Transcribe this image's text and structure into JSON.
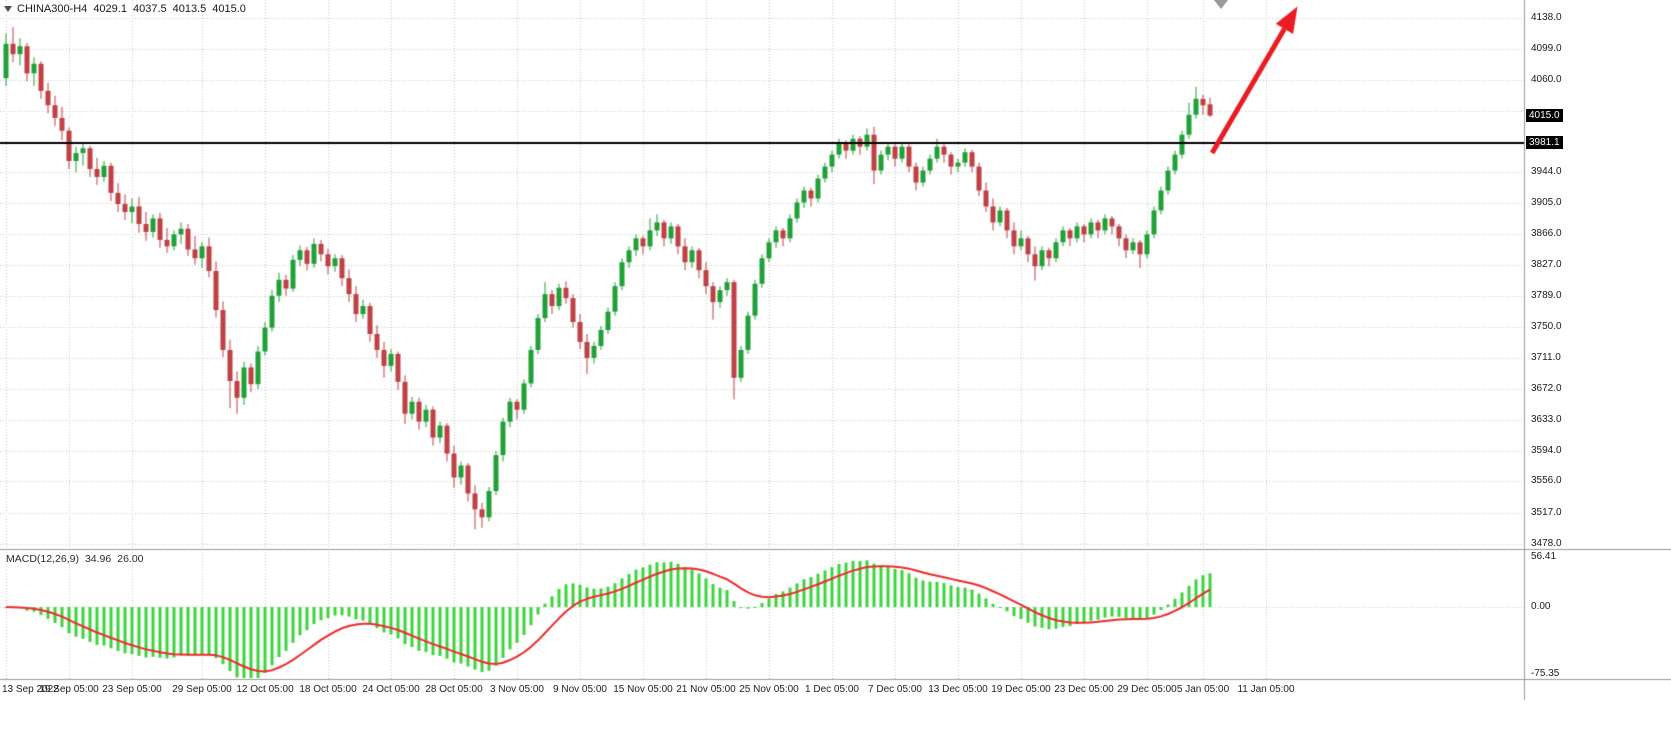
{
  "header": {
    "symbol_period": "CHINA300-H4",
    "open": "4029.1",
    "high": "4037.5",
    "low": "4013.5",
    "close": "4015.0"
  },
  "indicator_panel": {
    "name": "MACD(12,26,9)",
    "value_main": "34.96",
    "value_signal": "26.00",
    "scale_max": "56.41",
    "scale_zero": "0.00",
    "scale_min": "-75.35"
  },
  "price_axis": {
    "current_price_label": "4015.0",
    "hline_label": "3981.1"
  },
  "chart_data": {
    "type": "candlestick",
    "title": "CHINA300-H4",
    "symbol": "CHINA300",
    "timeframe": "H4",
    "grid": true,
    "y_axis": {
      "min": 3478.0,
      "max": 4138.0,
      "grid_step": 39,
      "grid_prices": [
        4138,
        4099,
        4060,
        4021,
        3982,
        3944,
        3905,
        3866,
        3827,
        3789,
        3750,
        3711,
        3672,
        3633,
        3594,
        3556,
        3517,
        3478
      ],
      "labels": [
        {
          "price": 4138,
          "text": "4138.0"
        },
        {
          "price": 4099,
          "text": "4099.0"
        },
        {
          "price": 4060,
          "text": "4060.0"
        },
        {
          "price": 3944,
          "text": "3944.0"
        },
        {
          "price": 3905,
          "text": "3905.0"
        },
        {
          "price": 3866,
          "text": "3866.0"
        },
        {
          "price": 3827,
          "text": "3827.0"
        },
        {
          "price": 3789,
          "text": "3789.0"
        },
        {
          "price": 3750,
          "text": "3750.0"
        },
        {
          "price": 3711,
          "text": "3711.0"
        },
        {
          "price": 3672,
          "text": "3672.0"
        },
        {
          "price": 3633,
          "text": "3633.0"
        },
        {
          "price": 3594,
          "text": "3594.0"
        },
        {
          "price": 3556,
          "text": "3556.0"
        },
        {
          "price": 3517,
          "text": "3517.0"
        },
        {
          "price": 3478,
          "text": "3478.0"
        }
      ]
    },
    "x_axis": {
      "ticks": [
        {
          "bar": 0,
          "label": "13 Sep 2022"
        },
        {
          "bar": 9,
          "label": "19 Sep 05:00"
        },
        {
          "bar": 18,
          "label": "23 Sep 05:00"
        },
        {
          "bar": 28,
          "label": "29 Sep 05:00"
        },
        {
          "bar": 37,
          "label": "12 Oct 05:00"
        },
        {
          "bar": 46,
          "label": "18 Oct 05:00"
        },
        {
          "bar": 55,
          "label": "24 Oct 05:00"
        },
        {
          "bar": 64,
          "label": "28 Oct 05:00"
        },
        {
          "bar": 73,
          "label": "3 Nov 05:00"
        },
        {
          "bar": 82,
          "label": "9 Nov 05:00"
        },
        {
          "bar": 91,
          "label": "15 Nov 05:00"
        },
        {
          "bar": 100,
          "label": "21 Nov 05:00"
        },
        {
          "bar": 109,
          "label": "25 Nov 05:00"
        },
        {
          "bar": 118,
          "label": "1 Dec 05:00"
        },
        {
          "bar": 127,
          "label": "7 Dec 05:00"
        },
        {
          "bar": 136,
          "label": "13 Dec 05:00"
        },
        {
          "bar": 145,
          "label": "19 Dec 05:00"
        },
        {
          "bar": 154,
          "label": "23 Dec 05:00"
        },
        {
          "bar": 163,
          "label": "29 Dec 05:00"
        },
        {
          "bar": 171,
          "label": "5 Jan 05:00"
        },
        {
          "bar": 180,
          "label": "11 Jan 05:00"
        }
      ]
    },
    "candles_ohlc": [
      [
        4062,
        4118,
        4052,
        4105
      ],
      [
        4105,
        4126,
        4082,
        4092
      ],
      [
        4092,
        4112,
        4078,
        4102
      ],
      [
        4102,
        4106,
        4058,
        4068
      ],
      [
        4068,
        4088,
        4052,
        4080
      ],
      [
        4080,
        4083,
        4036,
        4046
      ],
      [
        4046,
        4056,
        4018,
        4028
      ],
      [
        4028,
        4040,
        4002,
        4012
      ],
      [
        4012,
        4026,
        3984,
        3996
      ],
      [
        3996,
        4000,
        3948,
        3958
      ],
      [
        3958,
        3976,
        3944,
        3968
      ],
      [
        3968,
        3981,
        3952,
        3974
      ],
      [
        3974,
        3977,
        3938,
        3948
      ],
      [
        3948,
        3962,
        3928,
        3938
      ],
      [
        3938,
        3958,
        3932,
        3952
      ],
      [
        3952,
        3956,
        3908,
        3918
      ],
      [
        3918,
        3930,
        3894,
        3904
      ],
      [
        3904,
        3916,
        3884,
        3894
      ],
      [
        3894,
        3911,
        3880,
        3901
      ],
      [
        3901,
        3913,
        3868,
        3879
      ],
      [
        3879,
        3894,
        3858,
        3869
      ],
      [
        3869,
        3891,
        3862,
        3886
      ],
      [
        3886,
        3893,
        3849,
        3859
      ],
      [
        3859,
        3874,
        3843,
        3851
      ],
      [
        3851,
        3871,
        3846,
        3866
      ],
      [
        3866,
        3881,
        3854,
        3873
      ],
      [
        3873,
        3879,
        3839,
        3847
      ],
      [
        3847,
        3864,
        3828,
        3836
      ],
      [
        3836,
        3856,
        3824,
        3851
      ],
      [
        3851,
        3862,
        3812,
        3820
      ],
      [
        3820,
        3832,
        3762,
        3771
      ],
      [
        3771,
        3782,
        3712,
        3721
      ],
      [
        3721,
        3734,
        3648,
        3682
      ],
      [
        3682,
        3694,
        3641,
        3661
      ],
      [
        3661,
        3706,
        3652,
        3699
      ],
      [
        3699,
        3704,
        3668,
        3678
      ],
      [
        3678,
        3726,
        3672,
        3719
      ],
      [
        3719,
        3756,
        3714,
        3749
      ],
      [
        3749,
        3796,
        3744,
        3789
      ],
      [
        3789,
        3818,
        3781,
        3809
      ],
      [
        3809,
        3815,
        3789,
        3798
      ],
      [
        3798,
        3840,
        3794,
        3834
      ],
      [
        3834,
        3852,
        3826,
        3846
      ],
      [
        3846,
        3850,
        3821,
        3829
      ],
      [
        3829,
        3861,
        3824,
        3854
      ],
      [
        3854,
        3859,
        3832,
        3841
      ],
      [
        3841,
        3848,
        3816,
        3826
      ],
      [
        3826,
        3841,
        3819,
        3836
      ],
      [
        3836,
        3840,
        3801,
        3811
      ],
      [
        3811,
        3822,
        3781,
        3791
      ],
      [
        3791,
        3801,
        3756,
        3766
      ],
      [
        3766,
        3784,
        3760,
        3776
      ],
      [
        3776,
        3780,
        3731,
        3741
      ],
      [
        3741,
        3752,
        3711,
        3721
      ],
      [
        3721,
        3731,
        3686,
        3701
      ],
      [
        3701,
        3722,
        3694,
        3716
      ],
      [
        3716,
        3719,
        3671,
        3681
      ],
      [
        3681,
        3689,
        3628,
        3641
      ],
      [
        3641,
        3662,
        3634,
        3656
      ],
      [
        3656,
        3661,
        3621,
        3631
      ],
      [
        3631,
        3652,
        3624,
        3646
      ],
      [
        3646,
        3650,
        3601,
        3611
      ],
      [
        3611,
        3631,
        3604,
        3626
      ],
      [
        3626,
        3629,
        3581,
        3591
      ],
      [
        3591,
        3601,
        3548,
        3561
      ],
      [
        3561,
        3581,
        3552,
        3576
      ],
      [
        3576,
        3579,
        3531,
        3541
      ],
      [
        3541,
        3551,
        3496,
        3521
      ],
      [
        3521,
        3529,
        3498,
        3511
      ],
      [
        3511,
        3549,
        3506,
        3544
      ],
      [
        3544,
        3594,
        3539,
        3589
      ],
      [
        3589,
        3636,
        3581,
        3631
      ],
      [
        3631,
        3661,
        3624,
        3656
      ],
      [
        3656,
        3659,
        3634,
        3646
      ],
      [
        3646,
        3684,
        3641,
        3679
      ],
      [
        3679,
        3726,
        3674,
        3721
      ],
      [
        3721,
        3766,
        3716,
        3761
      ],
      [
        3761,
        3806,
        3756,
        3791
      ],
      [
        3791,
        3796,
        3766,
        3776
      ],
      [
        3776,
        3804,
        3771,
        3799
      ],
      [
        3799,
        3807,
        3779,
        3786
      ],
      [
        3786,
        3791,
        3749,
        3756
      ],
      [
        3756,
        3766,
        3722,
        3731
      ],
      [
        3731,
        3741,
        3691,
        3711
      ],
      [
        3711,
        3731,
        3704,
        3726
      ],
      [
        3726,
        3751,
        3721,
        3746
      ],
      [
        3746,
        3774,
        3741,
        3769
      ],
      [
        3769,
        3806,
        3764,
        3801
      ],
      [
        3801,
        3836,
        3796,
        3831
      ],
      [
        3831,
        3851,
        3824,
        3846
      ],
      [
        3846,
        3866,
        3839,
        3861
      ],
      [
        3861,
        3864,
        3841,
        3851
      ],
      [
        3851,
        3886,
        3846,
        3871
      ],
      [
        3871,
        3891,
        3864,
        3881
      ],
      [
        3881,
        3884,
        3851,
        3861
      ],
      [
        3861,
        3881,
        3854,
        3876
      ],
      [
        3876,
        3879,
        3841,
        3851
      ],
      [
        3851,
        3861,
        3821,
        3831
      ],
      [
        3831,
        3851,
        3824,
        3846
      ],
      [
        3846,
        3849,
        3811,
        3821
      ],
      [
        3821,
        3831,
        3791,
        3801
      ],
      [
        3801,
        3806,
        3759,
        3781
      ],
      [
        3781,
        3801,
        3774,
        3796
      ],
      [
        3796,
        3811,
        3789,
        3806
      ],
      [
        3806,
        3809,
        3659,
        3686
      ],
      [
        3686,
        3726,
        3681,
        3721
      ],
      [
        3721,
        3769,
        3716,
        3764
      ],
      [
        3764,
        3809,
        3759,
        3804
      ],
      [
        3804,
        3841,
        3799,
        3836
      ],
      [
        3836,
        3861,
        3831,
        3856
      ],
      [
        3856,
        3876,
        3849,
        3871
      ],
      [
        3871,
        3874,
        3851,
        3861
      ],
      [
        3861,
        3891,
        3856,
        3886
      ],
      [
        3886,
        3911,
        3881,
        3906
      ],
      [
        3906,
        3926,
        3899,
        3921
      ],
      [
        3921,
        3924,
        3901,
        3911
      ],
      [
        3911,
        3941,
        3906,
        3936
      ],
      [
        3936,
        3956,
        3931,
        3951
      ],
      [
        3951,
        3971,
        3944,
        3966
      ],
      [
        3966,
        3986,
        3961,
        3981
      ],
      [
        3981,
        3984,
        3961,
        3971
      ],
      [
        3971,
        3991,
        3966,
        3986
      ],
      [
        3986,
        3989,
        3966,
        3976
      ],
      [
        3976,
        3999,
        3971,
        3991
      ],
      [
        3991,
        4001,
        3929,
        3946
      ],
      [
        3946,
        3971,
        3941,
        3966
      ],
      [
        3966,
        3981,
        3959,
        3976
      ],
      [
        3976,
        3979,
        3951,
        3961
      ],
      [
        3961,
        3981,
        3956,
        3976
      ],
      [
        3976,
        3979,
        3944,
        3951
      ],
      [
        3951,
        3956,
        3921,
        3931
      ],
      [
        3931,
        3951,
        3926,
        3946
      ],
      [
        3946,
        3966,
        3941,
        3961
      ],
      [
        3961,
        3986,
        3956,
        3976
      ],
      [
        3976,
        3979,
        3956,
        3966
      ],
      [
        3966,
        3969,
        3941,
        3951
      ],
      [
        3951,
        3961,
        3944,
        3956
      ],
      [
        3956,
        3974,
        3951,
        3969
      ],
      [
        3969,
        3972,
        3944,
        3951
      ],
      [
        3951,
        3956,
        3914,
        3921
      ],
      [
        3921,
        3931,
        3894,
        3901
      ],
      [
        3901,
        3911,
        3871,
        3881
      ],
      [
        3881,
        3901,
        3876,
        3896
      ],
      [
        3896,
        3899,
        3861,
        3871
      ],
      [
        3871,
        3881,
        3841,
        3851
      ],
      [
        3851,
        3871,
        3846,
        3861
      ],
      [
        3861,
        3864,
        3831,
        3841
      ],
      [
        3841,
        3851,
        3808,
        3826
      ],
      [
        3826,
        3851,
        3821,
        3846
      ],
      [
        3846,
        3849,
        3826,
        3836
      ],
      [
        3836,
        3861,
        3831,
        3856
      ],
      [
        3856,
        3876,
        3851,
        3871
      ],
      [
        3871,
        3874,
        3851,
        3861
      ],
      [
        3861,
        3881,
        3856,
        3876
      ],
      [
        3876,
        3879,
        3856,
        3866
      ],
      [
        3866,
        3886,
        3861,
        3881
      ],
      [
        3881,
        3884,
        3861,
        3871
      ],
      [
        3871,
        3891,
        3866,
        3886
      ],
      [
        3886,
        3889,
        3866,
        3876
      ],
      [
        3876,
        3879,
        3851,
        3861
      ],
      [
        3861,
        3866,
        3836,
        3846
      ],
      [
        3846,
        3861,
        3841,
        3856
      ],
      [
        3856,
        3859,
        3824,
        3841
      ],
      [
        3841,
        3871,
        3836,
        3866
      ],
      [
        3866,
        3901,
        3861,
        3896
      ],
      [
        3896,
        3926,
        3891,
        3921
      ],
      [
        3921,
        3951,
        3916,
        3946
      ],
      [
        3946,
        3971,
        3941,
        3966
      ],
      [
        3966,
        3996,
        3961,
        3991
      ],
      [
        3991,
        4031,
        3986,
        4016
      ],
      [
        4016,
        4051,
        4011,
        4036
      ],
      [
        4036,
        4041,
        4016,
        4028
      ],
      [
        4029.1,
        4037.5,
        4013.5,
        4015.0
      ]
    ],
    "horizontal_line": {
      "price": 3981.1,
      "label": "3981.1"
    },
    "current_price": {
      "value": 4015.0,
      "label": "4015.0"
    },
    "macd": {
      "name": "MACD(12,26,9)",
      "fast": 12,
      "slow": 26,
      "signal": 9,
      "last_main": 34.96,
      "last_signal": 26.0,
      "scale_max": 56.41,
      "scale_min": -75.35
    },
    "arrow_annotation": {
      "from": {
        "bar": 172.3,
        "price": 3968
      },
      "to": {
        "bar": 184.5,
        "price": 4152
      }
    },
    "colors": {
      "bull": "#21a038",
      "bear": "#bf4045",
      "macd_hist": "#3ed33e",
      "macd_signal": "#ee2b2b",
      "arrow": "#ea1b22",
      "grid": "#c9c9c9",
      "separator": "#9a9a9a",
      "hline": "#000000",
      "axis_text": "#1a1a1a",
      "box_bg": "#000000",
      "box_text": "#ffffff"
    }
  }
}
